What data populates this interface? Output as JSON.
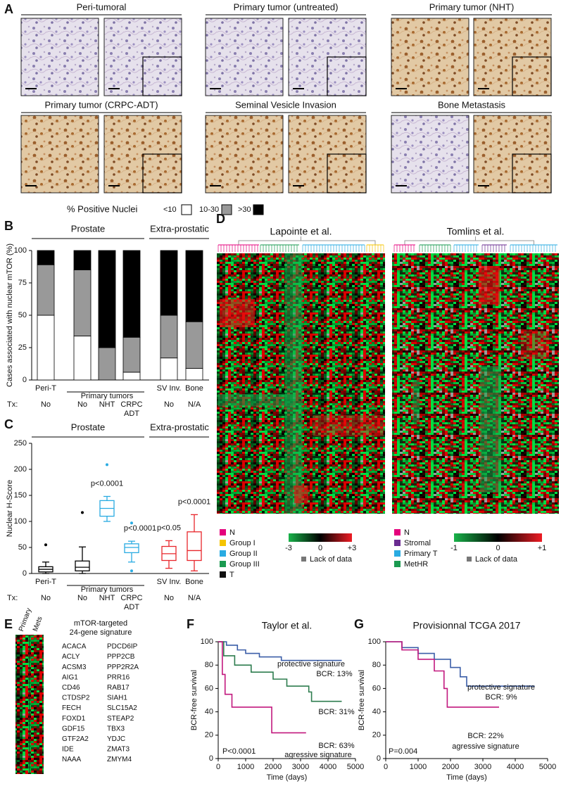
{
  "panel_a": {
    "label": "A",
    "titles": [
      "Peri-tumoral",
      "Primary tumor (untreated)",
      "Primary tumor (NHT)",
      "Primary tumor (CRPC-ADT)",
      "Seminal Vesicle Invasion",
      "Bone Metastasis"
    ]
  },
  "chart_data": [
    {
      "type": "stacked_bar",
      "panel_label": "B",
      "legend_title": "% Positive Nuclei",
      "ylabel": "Cases associated with nuclear mTOR (%)",
      "ylim": [
        0,
        100
      ],
      "yticks": [
        0,
        25,
        50,
        75,
        100
      ],
      "groups": [
        "Prostate",
        "Extra-prostatic"
      ],
      "subgroup": "Primary tumors",
      "categories": [
        "Peri-T",
        null,
        null,
        null,
        "SV Inv.",
        "Bone"
      ],
      "tx_label": "Tx:",
      "tx": [
        "No",
        "No",
        "NHT",
        [
          "CRPC",
          "ADT"
        ],
        "No",
        "N/A"
      ],
      "series": [
        {
          "name": "<10",
          "color": "#ffffff",
          "values": [
            50,
            34,
            0,
            6,
            17,
            9
          ]
        },
        {
          "name": "10-30",
          "color": "#999999",
          "values": [
            39,
            51,
            25,
            27,
            33,
            36
          ]
        },
        {
          "name": ">30",
          "color": "#000000",
          "values": [
            11,
            15,
            75,
            67,
            50,
            55
          ]
        }
      ]
    },
    {
      "type": "box",
      "panel_label": "C",
      "ylabel": "Nuclear H-Score",
      "ylim": [
        0,
        250
      ],
      "yticks": [
        0,
        50,
        100,
        150,
        200,
        250
      ],
      "groups": [
        "Prostate",
        "Extra-prostatic"
      ],
      "subgroup": "Primary tumors",
      "categories": [
        "Peri-T",
        null,
        null,
        null,
        "SV Inv.",
        "Bone"
      ],
      "tx_label": "Tx:",
      "tx": [
        "No",
        "No",
        "NHT",
        [
          "CRPC",
          "ADT"
        ],
        "No",
        "N/A"
      ],
      "colors": [
        "#000000",
        "#000000",
        "#29abe2",
        "#29abe2",
        "#e8262b",
        "#e8262b"
      ],
      "boxes": [
        {
          "min": 0,
          "q1": 3,
          "median": 8,
          "q3": 13,
          "max": 22,
          "outliers": [
            55
          ]
        },
        {
          "min": 0,
          "q1": 5,
          "median": 12,
          "q3": 24,
          "max": 51,
          "outliers": [
            117
          ]
        },
        {
          "min": 100,
          "q1": 110,
          "median": 125,
          "q3": 140,
          "max": 148,
          "outliers": [
            209
          ]
        },
        {
          "min": 22,
          "q1": 40,
          "median": 50,
          "q3": 57,
          "max": 62,
          "outliers": [
            97,
            5
          ]
        },
        {
          "min": 10,
          "q1": 25,
          "median": 38,
          "q3": 52,
          "max": 63,
          "outliers": []
        },
        {
          "min": 5,
          "q1": 25,
          "median": 44,
          "q3": 80,
          "max": 113,
          "outliers": []
        }
      ],
      "annotations": [
        null,
        null,
        "p<0.0001",
        "p<0.0001",
        "p<0.05",
        "p<0.0001"
      ]
    },
    {
      "type": "line",
      "panel_label": "F",
      "title": "Taylor et al.",
      "xlabel": "Time (days)",
      "ylabel": "BCR-free survival",
      "xlim": [
        0,
        5000
      ],
      "xticks": [
        0,
        1000,
        2000,
        3000,
        4000,
        5000
      ],
      "ylim": [
        0,
        100
      ],
      "yticks": [
        0,
        20,
        40,
        60,
        80,
        100
      ],
      "series": [
        {
          "color": "#3b5ea8",
          "x": [
            0,
            300,
            300,
            700,
            700,
            1000,
            1000,
            1500,
            1500,
            2300,
            2300,
            4500
          ],
          "values": [
            100,
            100,
            97,
            97,
            93,
            93,
            90,
            90,
            87,
            87,
            84,
            84
          ]
        },
        {
          "color": "#2e7d4f",
          "x": [
            0,
            200,
            200,
            600,
            600,
            1200,
            1200,
            2000,
            2000,
            2500,
            2500,
            3300,
            3300,
            3400,
            3400,
            4500
          ],
          "values": [
            100,
            100,
            88,
            88,
            80,
            80,
            74,
            74,
            68,
            68,
            62,
            62,
            57,
            57,
            49,
            49
          ]
        },
        {
          "color": "#c2187e",
          "x": [
            0,
            150,
            150,
            250,
            250,
            500,
            500,
            1950,
            1950,
            3200
          ],
          "values": [
            100,
            100,
            72,
            72,
            55,
            55,
            44,
            44,
            22,
            22
          ]
        }
      ],
      "annotations": [
        "protective signature",
        "BCR: 13%",
        "BCR: 31%",
        "BCR: 63%",
        "agressive signature",
        "P<0.0001"
      ]
    },
    {
      "type": "line",
      "panel_label": "G",
      "title": "Provisionnal TCGA 2017",
      "xlabel": "Time (days)",
      "ylabel": "BCR-free survival",
      "xlim": [
        0,
        5000
      ],
      "xticks": [
        0,
        1000,
        2000,
        3000,
        4000,
        5000
      ],
      "ylim": [
        0,
        100
      ],
      "yticks": [
        0,
        20,
        40,
        60,
        80,
        100
      ],
      "series": [
        {
          "color": "#3b5ea8",
          "x": [
            0,
            500,
            500,
            1000,
            1000,
            1500,
            1500,
            2000,
            2000,
            2300,
            2300,
            2500,
            2500,
            4600
          ],
          "values": [
            100,
            100,
            95,
            95,
            90,
            90,
            85,
            85,
            78,
            78,
            70,
            70,
            62,
            62
          ]
        },
        {
          "color": "#c2187e",
          "x": [
            0,
            500,
            500,
            1000,
            1000,
            1500,
            1500,
            1800,
            1800,
            1900,
            1900,
            3500
          ],
          "values": [
            100,
            100,
            93,
            93,
            85,
            85,
            75,
            75,
            60,
            60,
            44,
            44
          ]
        }
      ],
      "annotations": [
        "protective signature",
        "BCR: 9%",
        "BCR: 22%",
        "agressive signature",
        "P=0.004"
      ]
    }
  ],
  "panel_d": {
    "label": "D",
    "left": {
      "title": "Lapointe et al.",
      "legend": [
        {
          "name": "N",
          "color": "#e4007c"
        },
        {
          "name": "Group I",
          "color": "#f5c400"
        },
        {
          "name": "Group II",
          "color": "#29abe2"
        },
        {
          "name": "Group III",
          "color": "#1a9a50"
        },
        {
          "name": "T",
          "color": "#111111"
        }
      ],
      "scale": [
        "-3",
        "0",
        "+3"
      ],
      "missing": "Lack of data"
    },
    "right": {
      "title": "Tomlins et al.",
      "legend": [
        {
          "name": "N",
          "color": "#e4007c"
        },
        {
          "name": "Stromal",
          "color": "#6a2c91"
        },
        {
          "name": "Primary T",
          "color": "#29abe2"
        },
        {
          "name": "MetHR",
          "color": "#1a9a50"
        }
      ],
      "scale": [
        "-1",
        "0",
        "+1"
      ],
      "missing": "Lack of data"
    }
  },
  "panel_e": {
    "label": "E",
    "columns": [
      "Primary",
      "Mets"
    ],
    "title": [
      "mTOR-targeted",
      "24-gene signature"
    ],
    "genes": [
      "ACACA",
      "ACLY",
      "ACSM3",
      "AIG1",
      "CD46",
      "CTDSP2",
      "FECH",
      "FOXD1",
      "GDF15",
      "GTF2A2",
      "IDE",
      "NAAA",
      "PDCD6IP",
      "PPP2CB",
      "PPP2R2A",
      "PRR16",
      "RAB17",
      "SIAH1",
      "SLC15A2",
      "STEAP2",
      "TBX3",
      "YDJC",
      "ZMAT3",
      "ZMYM4"
    ]
  }
}
